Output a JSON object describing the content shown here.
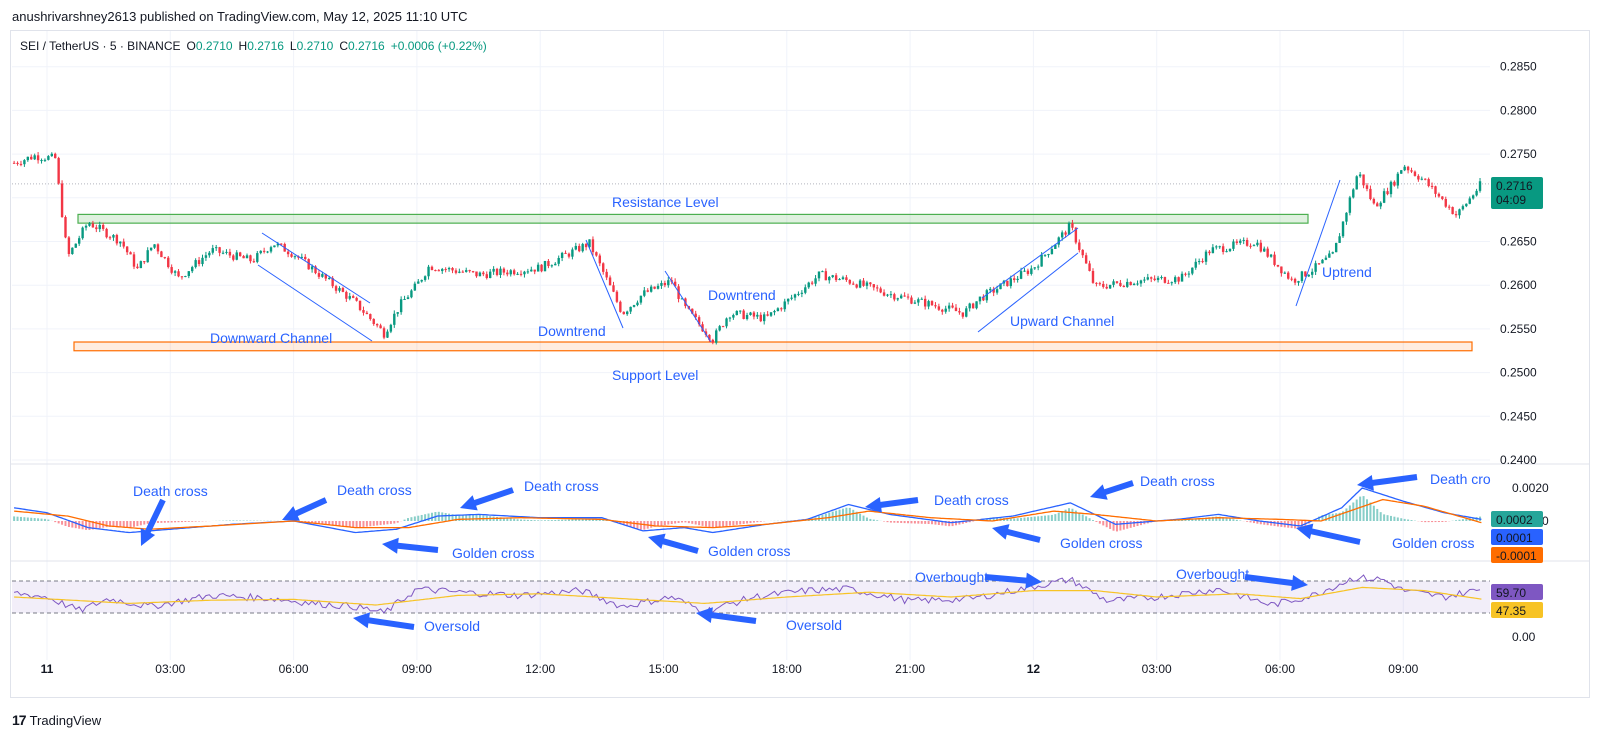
{
  "published": "anushrivarshney2613 published on TradingView.com, May 12, 2025 11:10 UTC",
  "header": {
    "symbol": "SEI / TetherUS · 5 · BINANCE",
    "o_label": "O",
    "o": "0.2710",
    "h_label": "H",
    "h": "0.2716",
    "l_label": "L",
    "l": "0.2710",
    "c_label": "C",
    "c": "0.2716",
    "change": "+0.0006 (+0.22%)"
  },
  "brand": "TradingView",
  "colors": {
    "up": "#089981",
    "down": "#f23645",
    "annotation": "#2962ff",
    "resistance": "#4caf50",
    "support": "#ff6d00",
    "macd": "#2962ff",
    "signal": "#ff6d00",
    "rsi": "#7e57c2",
    "rsi_ma": "#f7c325"
  },
  "chart_data": [
    {
      "type": "candlestick",
      "y_ticks": [
        "0.2850",
        "0.2800",
        "0.2750",
        "0.2700",
        "0.2650",
        "0.2600",
        "0.2550",
        "0.2500",
        "0.2450",
        "0.2400"
      ],
      "ylim": [
        0.24,
        0.288
      ],
      "x_ticks": [
        "11",
        "03:00",
        "06:00",
        "09:00",
        "12:00",
        "15:00",
        "18:00",
        "21:00",
        "12",
        "03:00",
        "06:00",
        "09:00"
      ],
      "x_hours": [
        0,
        3,
        6,
        9,
        12,
        15,
        18,
        21,
        24,
        27,
        30,
        33
      ],
      "path": [
        [
          -0.8,
          0.274
        ],
        [
          -0.3,
          0.2748
        ],
        [
          0.2,
          0.2745
        ],
        [
          0.5,
          0.2632
        ],
        [
          1.0,
          0.2672
        ],
        [
          1.8,
          0.265
        ],
        [
          2.2,
          0.2618
        ],
        [
          2.6,
          0.2648
        ],
        [
          3.2,
          0.2608
        ],
        [
          4.0,
          0.264
        ],
        [
          5.0,
          0.2628
        ],
        [
          5.5,
          0.2648
        ],
        [
          6.0,
          0.2636
        ],
        [
          7.5,
          0.258
        ],
        [
          8.2,
          0.2545
        ],
        [
          8.6,
          0.2578
        ],
        [
          9.0,
          0.26
        ],
        [
          9.3,
          0.2622
        ],
        [
          10.5,
          0.2612
        ],
        [
          12.0,
          0.262
        ],
        [
          13.2,
          0.2648
        ],
        [
          14.0,
          0.2568
        ],
        [
          14.5,
          0.259
        ],
        [
          15.2,
          0.2605
        ],
        [
          15.5,
          0.2575
        ],
        [
          16.2,
          0.2538
        ],
        [
          16.6,
          0.2568
        ],
        [
          17.5,
          0.2562
        ],
        [
          18.8,
          0.2612
        ],
        [
          19.5,
          0.2605
        ],
        [
          20.5,
          0.259
        ],
        [
          21.5,
          0.2578
        ],
        [
          22.3,
          0.2568
        ],
        [
          22.7,
          0.2585
        ],
        [
          24.0,
          0.262
        ],
        [
          24.9,
          0.2668
        ],
        [
          25.5,
          0.2598
        ],
        [
          26.5,
          0.2605
        ],
        [
          27.6,
          0.2608
        ],
        [
          28.3,
          0.264
        ],
        [
          29.4,
          0.265
        ],
        [
          30.3,
          0.2605
        ],
        [
          30.8,
          0.2618
        ],
        [
          31.3,
          0.2635
        ],
        [
          31.9,
          0.273
        ],
        [
          32.3,
          0.269
        ],
        [
          32.8,
          0.272
        ],
        [
          33.0,
          0.2738
        ],
        [
          33.5,
          0.272
        ],
        [
          34.3,
          0.268
        ],
        [
          34.9,
          0.2716
        ]
      ],
      "resistance_zone": [
        0.2671,
        0.2681
      ],
      "support_zone": [
        0.2525,
        0.2535
      ],
      "current_price": "0.2716",
      "countdown": "04:09"
    },
    {
      "type": "line",
      "name": "MACD",
      "y_ticks": [
        "0.0020",
        "0.0000"
      ],
      "current": {
        "histogram": "0.0002",
        "macd": "0.0001",
        "signal": "-0.0001"
      },
      "macd": [
        [
          -0.8,
          0.0008
        ],
        [
          0.0,
          0.0005
        ],
        [
          1.0,
          -0.0004
        ],
        [
          2.0,
          -0.0007
        ],
        [
          3.0,
          -0.0005
        ],
        [
          4.5,
          -0.0002
        ],
        [
          6.0,
          0.0
        ],
        [
          7.5,
          -0.0007
        ],
        [
          8.5,
          -0.0005
        ],
        [
          9.5,
          0.0003
        ],
        [
          10.5,
          0.0004
        ],
        [
          12.0,
          0.0002
        ],
        [
          13.5,
          0.0002
        ],
        [
          14.5,
          -0.0006
        ],
        [
          15.5,
          -0.0004
        ],
        [
          16.2,
          -0.0007
        ],
        [
          17.5,
          -0.0002
        ],
        [
          18.5,
          0.0001
        ],
        [
          19.5,
          0.001
        ],
        [
          20.5,
          0.0004
        ],
        [
          22.0,
          -0.0001
        ],
        [
          23.5,
          0.0003
        ],
        [
          24.9,
          0.0011
        ],
        [
          26.0,
          -0.0002
        ],
        [
          27.5,
          0.0001
        ],
        [
          28.5,
          0.0004
        ],
        [
          29.5,
          0.0
        ],
        [
          30.5,
          -0.0003
        ],
        [
          31.5,
          0.0008
        ],
        [
          32.0,
          0.002
        ],
        [
          33.0,
          0.0012
        ],
        [
          34.0,
          0.0005
        ],
        [
          34.9,
          0.0001
        ]
      ],
      "signal": [
        [
          -0.8,
          0.0006
        ],
        [
          0.5,
          0.0003
        ],
        [
          1.5,
          -0.0003
        ],
        [
          2.5,
          -0.0005
        ],
        [
          4.0,
          -0.0003
        ],
        [
          6.0,
          0.0
        ],
        [
          7.5,
          -0.0004
        ],
        [
          8.8,
          -0.0004
        ],
        [
          10.0,
          0.0001
        ],
        [
          11.5,
          0.0002
        ],
        [
          13.5,
          0.0001
        ],
        [
          14.8,
          -0.0003
        ],
        [
          16.2,
          -0.0004
        ],
        [
          17.5,
          -0.0002
        ],
        [
          19.0,
          0.0002
        ],
        [
          20.0,
          0.0006
        ],
        [
          21.5,
          0.0002
        ],
        [
          23.0,
          0.0
        ],
        [
          24.5,
          0.0006
        ],
        [
          25.5,
          0.0004
        ],
        [
          27.0,
          0.0
        ],
        [
          28.5,
          0.0002
        ],
        [
          30.0,
          0.0001
        ],
        [
          31.0,
          0.0
        ],
        [
          32.5,
          0.0013
        ],
        [
          33.5,
          0.0009
        ],
        [
          34.9,
          -0.0001
        ]
      ],
      "annotations": [
        {
          "label": "Death cross",
          "x": 3.0
        },
        {
          "label": "Death cross",
          "x": 8.3
        },
        {
          "label": "Death cross",
          "x": 12.2
        },
        {
          "label": "Death cross",
          "x": 20.4
        },
        {
          "label": "Death cross",
          "x": 26.4
        },
        {
          "label": "Death cro",
          "x": 34.5
        },
        {
          "label": "Golden cross",
          "x": 10.6
        },
        {
          "label": "Golden cross",
          "x": 17.0
        },
        {
          "label": "Golden cross",
          "x": 25.4
        },
        {
          "label": "Golden cross",
          "x": 32.7
        }
      ]
    },
    {
      "type": "line",
      "name": "RSI",
      "y_ticks": [
        "0.00"
      ],
      "current": {
        "rsi": "59.70",
        "rsi_ma": "47.35"
      },
      "band": [
        30,
        70
      ],
      "rsi": [
        [
          -0.8,
          55
        ],
        [
          0.0,
          50
        ],
        [
          0.8,
          33
        ],
        [
          1.5,
          48
        ],
        [
          2.5,
          38
        ],
        [
          4.0,
          52
        ],
        [
          5.5,
          48
        ],
        [
          6.5,
          42
        ],
        [
          7.5,
          38
        ],
        [
          8.2,
          30
        ],
        [
          9.0,
          60
        ],
        [
          10.0,
          56
        ],
        [
          11.5,
          52
        ],
        [
          13.0,
          58
        ],
        [
          14.0,
          38
        ],
        [
          15.2,
          50
        ],
        [
          16.0,
          32
        ],
        [
          17.2,
          50
        ],
        [
          18.5,
          58
        ],
        [
          19.5,
          60
        ],
        [
          21.0,
          45
        ],
        [
          22.5,
          48
        ],
        [
          23.5,
          58
        ],
        [
          24.9,
          72
        ],
        [
          25.8,
          45
        ],
        [
          27.0,
          50
        ],
        [
          28.5,
          60
        ],
        [
          29.8,
          40
        ],
        [
          30.8,
          52
        ],
        [
          31.8,
          74
        ],
        [
          32.5,
          72
        ],
        [
          33.0,
          58
        ],
        [
          34.0,
          50
        ],
        [
          34.9,
          59.7
        ]
      ],
      "rsi_ma": [
        [
          -0.8,
          50
        ],
        [
          2.0,
          42
        ],
        [
          4.0,
          46
        ],
        [
          6.0,
          47
        ],
        [
          8.0,
          40
        ],
        [
          10.0,
          52
        ],
        [
          12.0,
          54
        ],
        [
          14.0,
          48
        ],
        [
          16.0,
          42
        ],
        [
          18.0,
          50
        ],
        [
          20.0,
          56
        ],
        [
          22.0,
          50
        ],
        [
          24.0,
          58
        ],
        [
          25.5,
          58
        ],
        [
          27.0,
          50
        ],
        [
          29.0,
          54
        ],
        [
          30.5,
          48
        ],
        [
          32.0,
          62
        ],
        [
          33.5,
          58
        ],
        [
          34.9,
          47.35
        ]
      ],
      "annotations": [
        {
          "label": "Oversold",
          "x": 10.0
        },
        {
          "label": "Oversold",
          "x": 18.5
        },
        {
          "label": "Overbought",
          "x": 22.5
        },
        {
          "label": "Overbought",
          "x": 28.5
        }
      ]
    }
  ],
  "price_annotations": [
    {
      "label": "Resistance Level"
    },
    {
      "label": "Support Level"
    },
    {
      "label": "Downward Channel"
    },
    {
      "label": "Downtrend"
    },
    {
      "label": "Downtrend"
    },
    {
      "label": "Upward Channel"
    },
    {
      "label": "Uptrend"
    }
  ]
}
